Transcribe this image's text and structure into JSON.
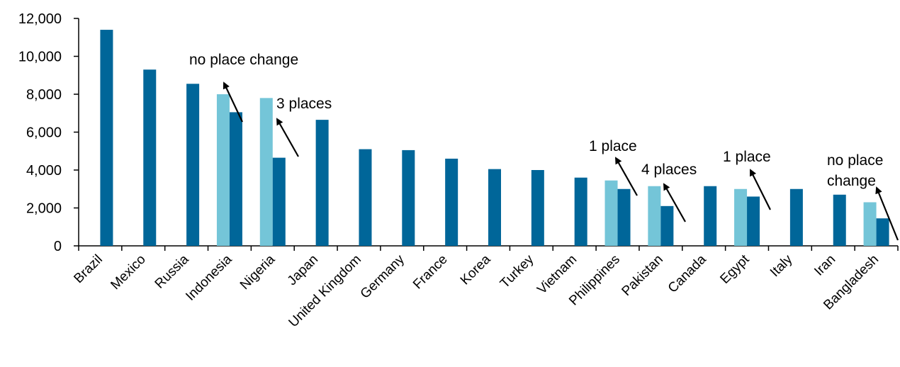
{
  "chart_data": {
    "type": "bar",
    "title": "",
    "xlabel": "",
    "ylabel": "",
    "ylim": [
      0,
      12000
    ],
    "yticks": [
      0,
      2000,
      4000,
      6000,
      8000,
      10000,
      12000
    ],
    "ytick_labels": [
      "0",
      "2,000",
      "4,000",
      "6,000",
      "8,000",
      "10,000",
      "12,000"
    ],
    "grid": false,
    "legend": "none",
    "categories": [
      "Brazil",
      "Mexico",
      "Russia",
      "Indonesia",
      "Nigeria",
      "Japan",
      "United Kingdom",
      "Germany",
      "France",
      "Korea",
      "Turkey",
      "Vietnam",
      "Philippines",
      "Pakistan",
      "Canada",
      "Egypt",
      "Italy",
      "Iran",
      "Bangladesh"
    ],
    "series": [
      {
        "color": "#74C5D8",
        "values": [
          null,
          null,
          null,
          8000,
          7800,
          null,
          null,
          null,
          null,
          null,
          null,
          null,
          3450,
          3150,
          null,
          3000,
          null,
          null,
          2300
        ]
      },
      {
        "color": "#006699",
        "values": [
          11400,
          9300,
          8550,
          7050,
          4650,
          6650,
          5100,
          5050,
          4600,
          4050,
          4000,
          3600,
          3000,
          2100,
          3150,
          2600,
          3000,
          2700,
          1450
        ]
      }
    ],
    "annotations": [
      {
        "text": "no place change",
        "category": "Indonesia"
      },
      {
        "text": "3 places",
        "category": "Nigeria"
      },
      {
        "text": "1 place",
        "category": "Philippines"
      },
      {
        "text": "4 places",
        "category": "Pakistan"
      },
      {
        "text": "1 place",
        "category": "Egypt"
      },
      {
        "text": "no place change",
        "category": "Bangladesh"
      }
    ]
  }
}
